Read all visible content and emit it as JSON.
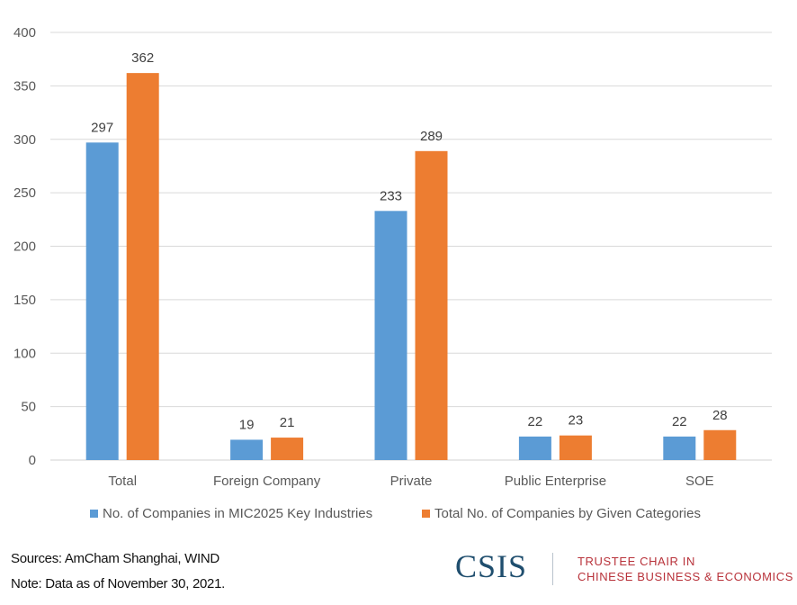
{
  "chart_data": {
    "type": "bar",
    "title": "",
    "xlabel": "",
    "ylabel": "",
    "categories": [
      "Total",
      "Foreign Company",
      "Private",
      "Public Enterprise",
      "SOE"
    ],
    "series": [
      {
        "name": "No. of Companies in MIC2025 Key Industries",
        "color": "#5b9bd5",
        "values": [
          297,
          19,
          233,
          22,
          22
        ]
      },
      {
        "name": "Total No. of Companies by Given Categories",
        "color": "#ed7d31",
        "values": [
          362,
          21,
          289,
          23,
          28
        ]
      }
    ],
    "ylim": [
      0,
      400
    ],
    "yticks": [
      0,
      50,
      100,
      150,
      200,
      250,
      300,
      350,
      400
    ],
    "grid": true,
    "legend_position": "bottom",
    "data_labels": true
  },
  "footer": {
    "sources": "Sources: AmCham Shanghai, WIND",
    "note": "Note: Data as of November 30, 2021.",
    "logo": "CSIS",
    "chair_line1": "TRUSTEE CHAIR IN",
    "chair_line2": "CHINESE BUSINESS & ECONOMICS"
  }
}
